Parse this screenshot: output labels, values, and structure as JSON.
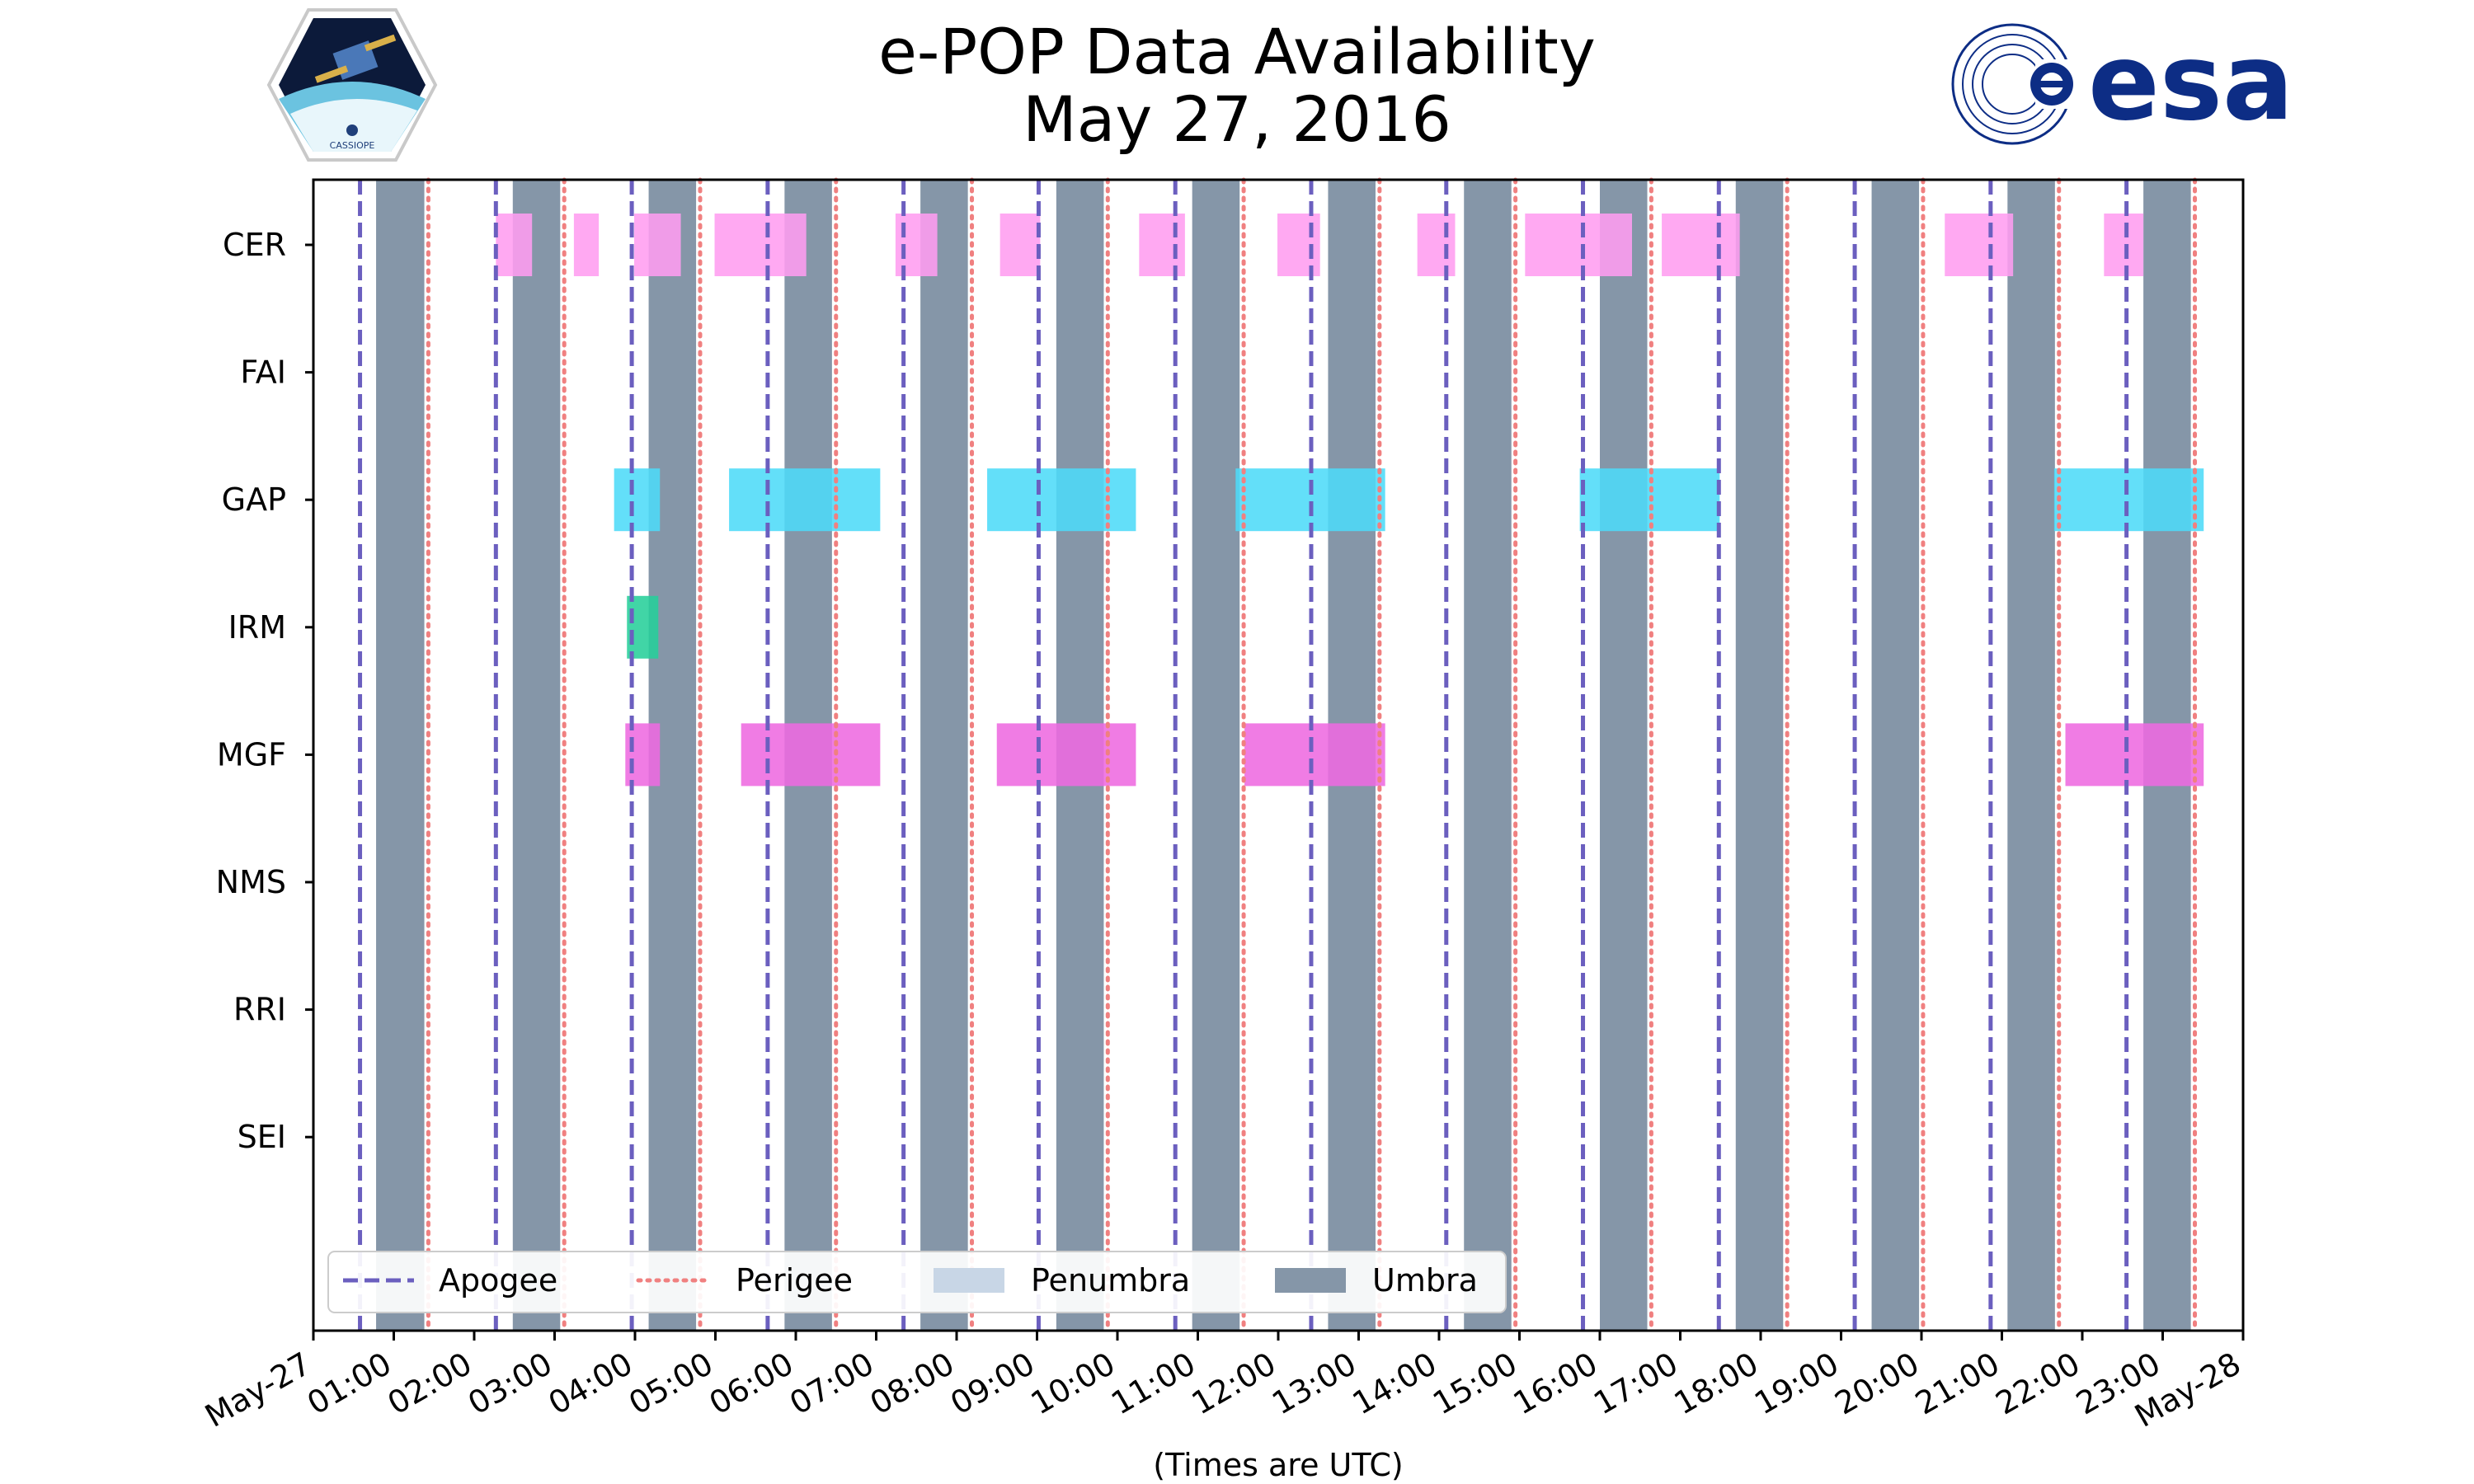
{
  "title": {
    "line1": "e-POP Data Availability",
    "line2": "May 27, 2016"
  },
  "logos": {
    "left": {
      "name": "CASSIOPE mission patch",
      "text": "CASSIOPE"
    },
    "right": {
      "name": "ESA logo",
      "text": "esa"
    }
  },
  "colors": {
    "apogee": "#6b5fbf",
    "perigee": "#f08080",
    "penumbra": "#c8d6e6",
    "umbra": "#8596a8",
    "CER": "#ff9df0",
    "GAP": "#4ddbf8",
    "IRM": "#27cf9a",
    "MGF": "#ee6ae0"
  },
  "chart_data": {
    "type": "timeline",
    "title": "e-POP Data Availability May 27, 2016",
    "xlabel": "(Times are UTC)",
    "x_unit": "hours (UTC) since May-27 00:00",
    "xlim": [
      0,
      24
    ],
    "x_ticks": [
      {
        "h": 0,
        "label": "May-27"
      },
      {
        "h": 1,
        "label": "01:00"
      },
      {
        "h": 2,
        "label": "02:00"
      },
      {
        "h": 3,
        "label": "03:00"
      },
      {
        "h": 4,
        "label": "04:00"
      },
      {
        "h": 5,
        "label": "05:00"
      },
      {
        "h": 6,
        "label": "06:00"
      },
      {
        "h": 7,
        "label": "07:00"
      },
      {
        "h": 8,
        "label": "08:00"
      },
      {
        "h": 9,
        "label": "09:00"
      },
      {
        "h": 10,
        "label": "10:00"
      },
      {
        "h": 11,
        "label": "11:00"
      },
      {
        "h": 12,
        "label": "12:00"
      },
      {
        "h": 13,
        "label": "13:00"
      },
      {
        "h": 14,
        "label": "14:00"
      },
      {
        "h": 15,
        "label": "15:00"
      },
      {
        "h": 16,
        "label": "16:00"
      },
      {
        "h": 17,
        "label": "17:00"
      },
      {
        "h": 18,
        "label": "18:00"
      },
      {
        "h": 19,
        "label": "19:00"
      },
      {
        "h": 20,
        "label": "20:00"
      },
      {
        "h": 21,
        "label": "21:00"
      },
      {
        "h": 22,
        "label": "22:00"
      },
      {
        "h": 23,
        "label": "23:00"
      },
      {
        "h": 24,
        "label": "May-28"
      }
    ],
    "instruments": [
      "CER",
      "FAI",
      "GAP",
      "IRM",
      "MGF",
      "NMS",
      "RRI",
      "SEI"
    ],
    "apogee_hours": [
      0.58,
      2.27,
      3.96,
      5.65,
      7.34,
      9.02,
      10.72,
      12.41,
      14.09,
      15.79,
      17.48,
      19.17,
      20.86,
      22.55
    ],
    "perigee_hours": [
      1.43,
      3.12,
      4.81,
      6.5,
      8.19,
      9.88,
      11.57,
      13.26,
      14.95,
      16.64,
      18.33,
      20.02,
      21.71,
      23.4
    ],
    "umbra_intervals": [
      [
        0.78,
        1.38
      ],
      [
        2.48,
        3.07
      ],
      [
        4.17,
        4.76
      ],
      [
        5.86,
        6.45
      ],
      [
        7.55,
        8.14
      ],
      [
        9.24,
        9.83
      ],
      [
        10.93,
        11.52
      ],
      [
        12.62,
        13.21
      ],
      [
        14.31,
        14.9
      ],
      [
        16.0,
        16.59
      ],
      [
        17.69,
        18.28
      ],
      [
        19.38,
        19.97
      ],
      [
        21.07,
        21.66
      ],
      [
        22.76,
        23.35
      ]
    ],
    "availability": {
      "CER": [
        [
          2.27,
          2.72
        ],
        [
          3.24,
          3.55
        ],
        [
          3.99,
          4.57
        ],
        [
          4.99,
          6.13
        ],
        [
          7.24,
          7.76
        ],
        [
          8.54,
          9.04
        ],
        [
          10.27,
          10.84
        ],
        [
          11.99,
          12.52
        ],
        [
          13.73,
          14.2
        ],
        [
          15.07,
          16.4
        ],
        [
          16.77,
          17.74
        ],
        [
          20.29,
          21.14
        ],
        [
          22.27,
          22.76
        ]
      ],
      "FAI": [],
      "GAP": [
        [
          3.74,
          4.31
        ],
        [
          5.17,
          7.05
        ],
        [
          8.38,
          10.23
        ],
        [
          11.47,
          13.33
        ],
        [
          15.75,
          17.49
        ],
        [
          21.65,
          23.51
        ]
      ],
      "IRM": [
        [
          3.9,
          4.29
        ]
      ],
      "MGF": [
        [
          3.88,
          4.31
        ],
        [
          5.32,
          7.05
        ],
        [
          8.5,
          10.23
        ],
        [
          11.58,
          13.33
        ],
        [
          21.79,
          23.51
        ]
      ],
      "NMS": [],
      "RRI": [],
      "SEI": []
    },
    "legend": {
      "position": "lower-left",
      "entries": [
        {
          "label": "Apogee",
          "style": "dashed"
        },
        {
          "label": "Perigee",
          "style": "dotted"
        },
        {
          "label": "Penumbra",
          "style": "patch"
        },
        {
          "label": "Umbra",
          "style": "patch"
        }
      ]
    }
  }
}
